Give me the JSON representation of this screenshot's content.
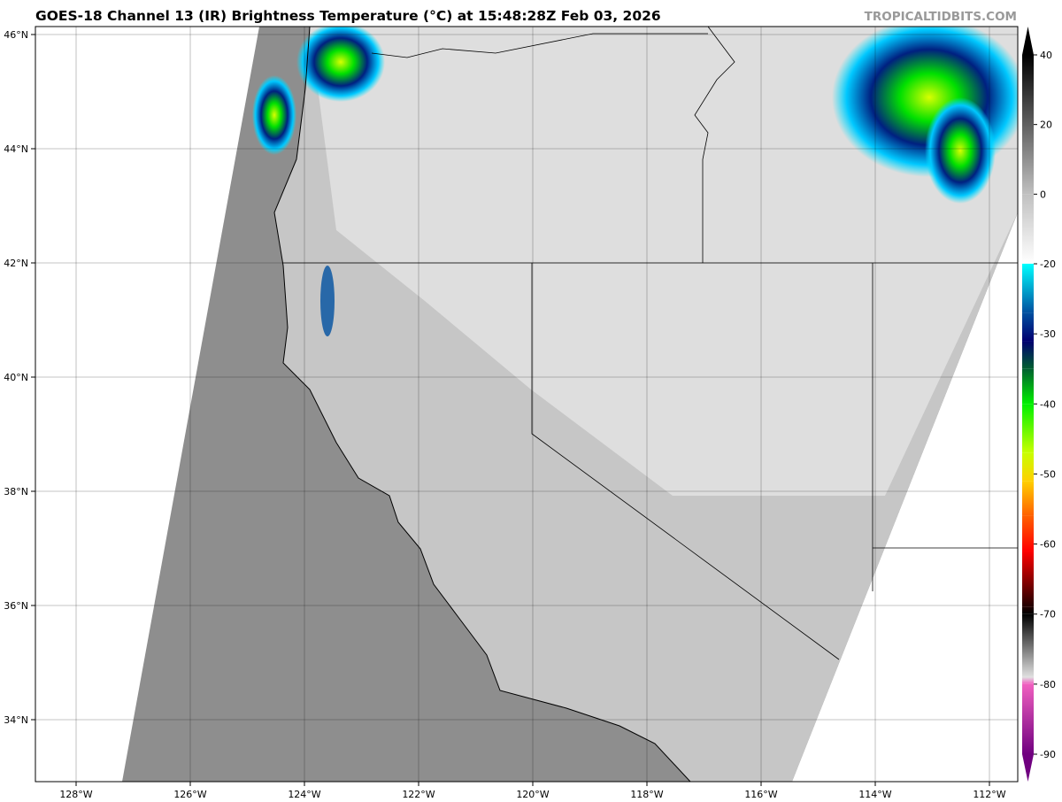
{
  "title": "GOES-18 Channel 13 (IR) Brightness Temperature (°C) at 15:48:28Z Feb 03, 2026",
  "watermark": "TROPICALTIDBITS.COM",
  "map": {
    "lon_ticks": [
      "128°W",
      "126°W",
      "124°W",
      "122°W",
      "120°W",
      "118°W",
      "116°W",
      "114°W",
      "112°W"
    ],
    "lon_values": [
      -128,
      -126,
      -124,
      -122,
      -120,
      -118,
      -116,
      -114,
      -112
    ],
    "lat_ticks": [
      "46°N",
      "44°N",
      "42°N",
      "40°N",
      "38°N",
      "36°N",
      "34°N"
    ],
    "lat_values": [
      46,
      44,
      42,
      40,
      38,
      36,
      34
    ],
    "ocean_color": "#8e8e8e",
    "land_color": "#c8c8c8",
    "cold_cloud_colors": [
      "#00e5ff",
      "#0050a0",
      "#00e000",
      "#d8ff00"
    ]
  },
  "colorbar": {
    "ticks": [
      "40",
      "20",
      "0",
      "-20",
      "-30",
      "-40",
      "-50",
      "-60",
      "-70",
      "-80",
      "-90"
    ],
    "tick_values": [
      40,
      20,
      0,
      -20,
      -30,
      -40,
      -50,
      -60,
      -70,
      -80,
      -90
    ],
    "stops": [
      {
        "v": 40,
        "c": "#000000"
      },
      {
        "v": 0,
        "c": "#c0c0c0"
      },
      {
        "v": -19.9,
        "c": "#ffffff"
      },
      {
        "v": -20,
        "c": "#00ffff"
      },
      {
        "v": -27,
        "c": "#0050a0"
      },
      {
        "v": -31,
        "c": "#000070"
      },
      {
        "v": -35,
        "c": "#006030"
      },
      {
        "v": -40,
        "c": "#00f000"
      },
      {
        "v": -47,
        "c": "#c8ff00"
      },
      {
        "v": -51,
        "c": "#ffd000"
      },
      {
        "v": -56,
        "c": "#ff6000"
      },
      {
        "v": -61,
        "c": "#ff0000"
      },
      {
        "v": -69,
        "c": "#200000"
      },
      {
        "v": -70,
        "c": "#000000"
      },
      {
        "v": -79,
        "c": "#e0e0e0"
      },
      {
        "v": -80,
        "c": "#f060c0"
      },
      {
        "v": -90,
        "c": "#700080"
      }
    ]
  }
}
